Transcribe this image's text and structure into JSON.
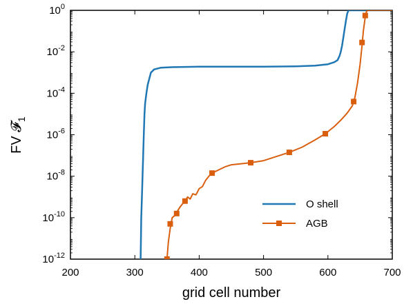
{
  "chart_data": {
    "type": "line",
    "title": "",
    "xlabel": "grid cell number",
    "ylabel": "FV 𝓕",
    "ylabel_subscript": "1",
    "xlim": [
      200,
      700
    ],
    "ylim_log10": [
      -12,
      0
    ],
    "yscale": "log",
    "grid": false,
    "legend_placement": "lower-right",
    "x_ticks": [
      200,
      300,
      400,
      500,
      600,
      700
    ],
    "y_ticks": [
      {
        "base": "10",
        "exp": "-12",
        "value": -12
      },
      {
        "base": "10",
        "exp": "-10",
        "value": -10
      },
      {
        "base": "10",
        "exp": "-8",
        "value": -8
      },
      {
        "base": "10",
        "exp": "-6",
        "value": -6
      },
      {
        "base": "10",
        "exp": "-4",
        "value": -4
      },
      {
        "base": "10",
        "exp": "-2",
        "value": -2
      },
      {
        "base": "10",
        "exp": "0",
        "value": 0
      }
    ],
    "series": [
      {
        "name": "O shell",
        "color": "#1f77b4",
        "marker": "none",
        "x": [
          309,
          309.5,
          310,
          311,
          312,
          313,
          314,
          315,
          316,
          318,
          320,
          325,
          330,
          340,
          360,
          400,
          450,
          500,
          550,
          580,
          600,
          610,
          615,
          618,
          620,
          622,
          624,
          626,
          628,
          630,
          632,
          640,
          700
        ],
        "log10_y": [
          -12,
          -11,
          -10,
          -9,
          -8,
          -7,
          -6,
          -5,
          -4.5,
          -4,
          -3.6,
          -3.0,
          -2.85,
          -2.77,
          -2.74,
          -2.72,
          -2.72,
          -2.72,
          -2.7,
          -2.67,
          -2.6,
          -2.5,
          -2.4,
          -2.2,
          -2.0,
          -1.7,
          -1.3,
          -0.9,
          -0.5,
          -0.15,
          0,
          0,
          0
        ]
      },
      {
        "name": "AGB",
        "color": "#d95f0e",
        "marker": "square",
        "x": [
          350,
          352,
          355,
          358,
          362,
          366,
          370,
          375,
          378,
          382,
          386,
          390,
          395,
          400,
          405,
          410,
          415,
          420,
          430,
          440,
          450,
          465,
          480,
          500,
          520,
          540,
          560,
          580,
          596,
          610,
          620,
          630,
          638,
          642,
          646,
          650,
          653,
          655,
          658,
          660,
          662,
          665,
          700
        ],
        "log10_y": [
          -12,
          -11.2,
          -10.5,
          -10.0,
          -9.9,
          -9.7,
          -9.5,
          -9.3,
          -9.2,
          -9.0,
          -9.1,
          -8.85,
          -8.9,
          -8.6,
          -8.5,
          -8.2,
          -8.0,
          -7.85,
          -7.7,
          -7.55,
          -7.45,
          -7.4,
          -7.35,
          -7.25,
          -7.05,
          -6.85,
          -6.6,
          -6.25,
          -5.95,
          -5.6,
          -5.3,
          -4.95,
          -4.6,
          -4.2,
          -3.5,
          -2.6,
          -1.7,
          -1.0,
          -0.3,
          -0.05,
          0,
          0,
          0
        ],
        "markers_x": [
          350,
          355,
          365,
          378,
          420,
          480,
          540,
          596,
          640,
          653,
          658
        ],
        "markers_log10_y": [
          -12,
          -10.3,
          -9.8,
          -9.2,
          -7.85,
          -7.35,
          -6.85,
          -5.95,
          -4.4,
          -1.55,
          -0.25
        ]
      }
    ]
  }
}
